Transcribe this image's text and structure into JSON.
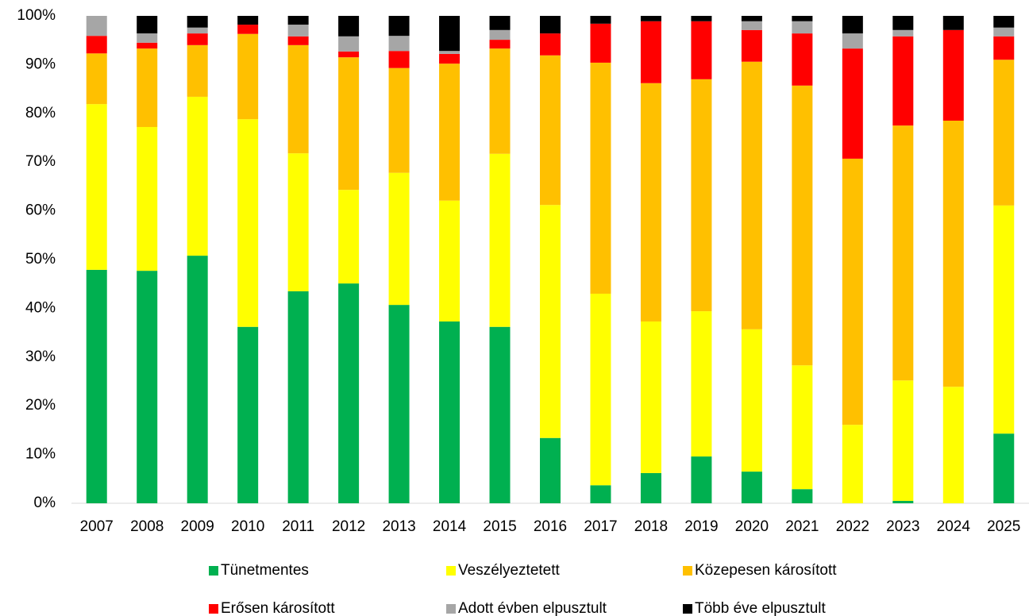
{
  "chart_data": {
    "type": "stacked_bar",
    "categories": [
      "2007",
      "2008",
      "2009",
      "2010",
      "2011",
      "2012",
      "2013",
      "2014",
      "2015",
      "2016",
      "2017",
      "2018",
      "2019",
      "2020",
      "2021",
      "2022",
      "2023",
      "2024",
      "2025"
    ],
    "series": [
      {
        "name": "Tünetmentes",
        "color": "#00b050",
        "values": [
          47.9,
          47.7,
          50.8,
          36.2,
          43.5,
          45.1,
          40.7,
          37.3,
          36.2,
          13.4,
          3.7,
          6.2,
          9.6,
          6.5,
          2.9,
          0,
          0.5,
          0,
          14.3
        ]
      },
      {
        "name": "Veszélyeztetett",
        "color": "#ffff00",
        "values": [
          34.0,
          29.5,
          32.6,
          42.6,
          28.3,
          19.2,
          27.1,
          24.8,
          35.5,
          47.8,
          39.3,
          31.1,
          29.8,
          29.2,
          25.4,
          16.1,
          24.7,
          23.9,
          46.8
        ]
      },
      {
        "name": "Közepesen károsított",
        "color": "#ffc000",
        "values": [
          10.4,
          16.1,
          10.6,
          17.5,
          22.2,
          27.2,
          21.5,
          28.1,
          21.6,
          30.7,
          47.4,
          48.9,
          47.6,
          54.9,
          57.4,
          54.6,
          52.3,
          54.6,
          29.9
        ]
      },
      {
        "name": "Erősen károsított",
        "color": "#ff0000",
        "values": [
          3.6,
          1.2,
          2.4,
          1.9,
          1.8,
          1.2,
          3.5,
          2.0,
          1.8,
          4.5,
          8.0,
          12.7,
          11.9,
          6.5,
          10.7,
          22.6,
          18.3,
          18.6,
          4.8
        ]
      },
      {
        "name": "Adott évben elpusztult",
        "color": "#a6a6a6",
        "values": [
          4.1,
          1.9,
          1.2,
          0,
          2.4,
          3.1,
          3.1,
          0.6,
          2.0,
          0,
          0,
          0,
          0,
          1.8,
          2.5,
          3.1,
          1.3,
          0,
          1.8
        ]
      },
      {
        "name": "Több éve elpusztult",
        "color": "#000000",
        "values": [
          0,
          3.6,
          2.4,
          1.8,
          1.8,
          4.2,
          4.1,
          7.2,
          2.9,
          3.6,
          1.6,
          1.1,
          1.1,
          1.1,
          1.1,
          3.6,
          2.9,
          2.9,
          2.4
        ]
      }
    ],
    "ylim": [
      0,
      100
    ],
    "yticks": [
      {
        "value": 0,
        "label": "0%"
      },
      {
        "value": 10,
        "label": "10%"
      },
      {
        "value": 20,
        "label": "20%"
      },
      {
        "value": 30,
        "label": "30%"
      },
      {
        "value": 40,
        "label": "40%"
      },
      {
        "value": 50,
        "label": "50%"
      },
      {
        "value": 60,
        "label": "60%"
      },
      {
        "value": 70,
        "label": "70%"
      },
      {
        "value": 80,
        "label": "80%"
      },
      {
        "value": 90,
        "label": "90%"
      },
      {
        "value": 100,
        "label": "100%"
      }
    ]
  }
}
